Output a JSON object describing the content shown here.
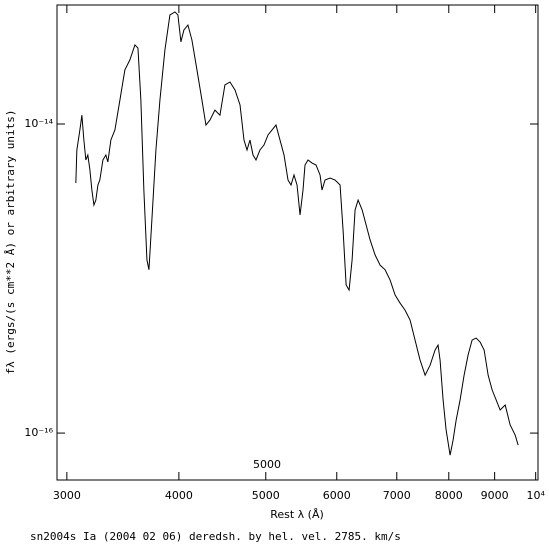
{
  "chart_data": {
    "type": "line",
    "x_label": "Rest λ (Å)",
    "y_label": "fλ (ergs/(s cm**2 Å) or arbitrary units)",
    "annotation": "5000",
    "caption": "sn2004s Ia (2004 02 06) deredsh. by hel. vel.  2785. km/s",
    "log_x": true,
    "log_y": true,
    "color": "#000000",
    "xlim": [
      2925,
      10060
    ],
    "ylim": [
      4.97e-17,
      5.89e-14
    ],
    "xticks": [
      3000,
      4000,
      5000,
      6000,
      7000,
      8000,
      9000,
      {
        "value": 10000,
        "label": "10⁴"
      }
    ],
    "yticks": [
      {
        "value": 1e-14,
        "label": "10⁻¹⁴"
      },
      {
        "value": 1e-16,
        "label": "10⁻¹⁶"
      }
    ],
    "x": [
      3070,
      3078,
      3102,
      3118,
      3134,
      3150,
      3166,
      3183,
      3199,
      3216,
      3232,
      3249,
      3265,
      3291,
      3316,
      3333,
      3359,
      3394,
      3438,
      3482,
      3527,
      3573,
      3601,
      3628,
      3656,
      3685,
      3704,
      3732,
      3771,
      3810,
      3859,
      3909,
      3960,
      3990,
      4021,
      4052,
      4094,
      4136,
      4190,
      4244,
      4288,
      4332,
      4388,
      4445,
      4502,
      4561,
      4620,
      4680,
      4728,
      4765,
      4801,
      4839,
      4876,
      4926,
      4977,
      5029,
      5081,
      5133,
      5186,
      5240,
      5294,
      5335,
      5376,
      5418,
      5460,
      5502,
      5530,
      5573,
      5631,
      5689,
      5748,
      5777,
      5822,
      5898,
      5974,
      6051,
      6098,
      6146,
      6193,
      6241,
      6289,
      6338,
      6404,
      6470,
      6536,
      6621,
      6707,
      6793,
      6881,
      6970,
      7059,
      7150,
      7243,
      7336,
      7431,
      7528,
      7625,
      7724,
      7783,
      7823,
      7884,
      7945,
      8027,
      8089,
      8152,
      8236,
      8321,
      8407,
      8494,
      8582,
      8670,
      8760,
      8851,
      8943,
      9035,
      9128,
      9247,
      9365,
      9487,
      9560
    ],
    "values": [
      4.15e-15,
      6.79e-15,
      9.15e-15,
      1.14e-14,
      7.88e-15,
      5.85e-15,
      6.3e-15,
      5.04e-15,
      3.74e-15,
      2.99e-15,
      3.22e-15,
      4.03e-15,
      4.34e-15,
      5.85e-15,
      6.3e-15,
      5.68e-15,
      7.88e-15,
      9.15e-15,
      1.43e-14,
      2.24e-14,
      2.6e-14,
      3.25e-14,
      3.1e-14,
      1.43e-14,
      3.74e-15,
      1.32e-15,
      1.14e-15,
      2.39e-15,
      6.79e-15,
      1.43e-14,
      3.01e-14,
      5.08e-14,
      5.31e-14,
      5.08e-14,
      3.4e-14,
      4.06e-14,
      4.37e-14,
      3.5e-14,
      2.24e-14,
      1.43e-14,
      9.85e-15,
      1.06e-14,
      1.23e-14,
      1.14e-14,
      1.79e-14,
      1.87e-14,
      1.66e-14,
      1.33e-14,
      7.88e-15,
      6.79e-15,
      7.88e-15,
      6.3e-15,
      5.85e-15,
      6.79e-15,
      7.31e-15,
      8.49e-15,
      9.15e-15,
      9.85e-15,
      7.88e-15,
      6.3e-15,
      4.34e-15,
      4.03e-15,
      4.68e-15,
      4.03e-15,
      2.58e-15,
      3.74e-15,
      5.43e-15,
      5.85e-15,
      5.59e-15,
      5.43e-15,
      4.68e-15,
      3.74e-15,
      4.34e-15,
      4.47e-15,
      4.34e-15,
      4.03e-15,
      2.06e-15,
      9.08e-16,
      8.43e-16,
      1.32e-15,
      2.78e-15,
      3.22e-15,
      2.78e-15,
      2.22e-15,
      1.78e-15,
      1.42e-15,
      1.22e-15,
      1.14e-15,
      9.78e-16,
      7.82e-16,
      6.94e-16,
      6.25e-16,
      5.39e-16,
      4e-16,
      2.97e-16,
      2.37e-16,
      2.75e-16,
      3.45e-16,
      3.71e-16,
      2.97e-16,
      1.64e-16,
      1.05e-16,
      7.2e-17,
      9.01e-17,
      1.21e-16,
      1.64e-16,
      2.37e-16,
      3.2e-16,
      4e-16,
      4.12e-16,
      3.88e-16,
      3.45e-16,
      2.37e-16,
      1.9e-16,
      1.64e-16,
      1.41e-16,
      1.52e-16,
      1.13e-16,
      9.71e-17,
      8.36e-17
    ]
  }
}
